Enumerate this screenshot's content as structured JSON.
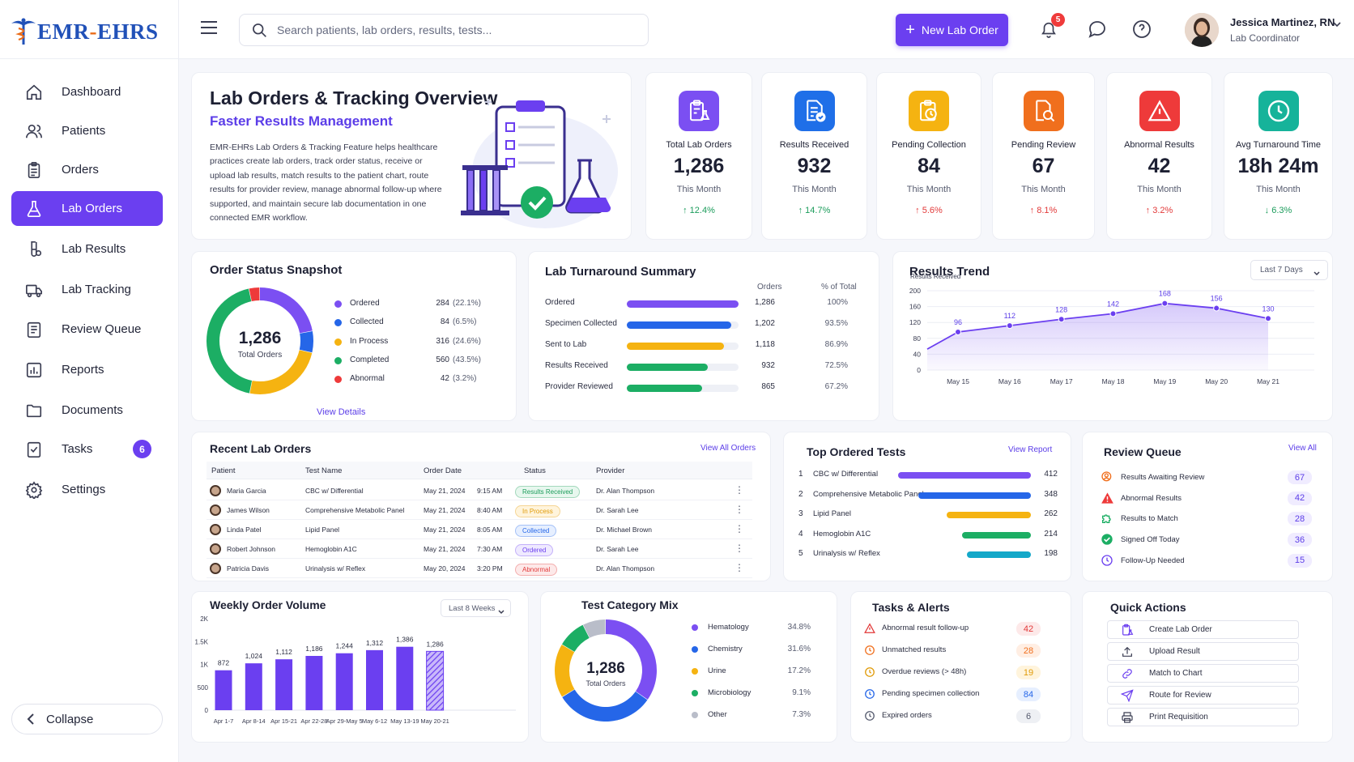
{
  "brand": {
    "logo_text_a": "EMR",
    "logo_text_dash": "-",
    "logo_text_b": "EHRS"
  },
  "sidebar": {
    "items": [
      {
        "label": "Dashboard",
        "icon": "home-icon"
      },
      {
        "label": "Patients",
        "icon": "users-icon"
      },
      {
        "label": "Orders",
        "icon": "clipboard-icon"
      },
      {
        "label": "Lab Orders",
        "icon": "flask-icon",
        "active": true
      },
      {
        "label": "Lab Results",
        "icon": "test-tube-icon"
      },
      {
        "label": "Lab Tracking",
        "icon": "truck-icon"
      },
      {
        "label": "Review Queue",
        "icon": "list-icon"
      },
      {
        "label": "Reports",
        "icon": "bar-chart-icon"
      },
      {
        "label": "Documents",
        "icon": "folder-icon"
      },
      {
        "label": "Tasks",
        "icon": "checklist-icon",
        "badge": "6"
      },
      {
        "label": "Settings",
        "icon": "gear-icon"
      }
    ],
    "collapse_label": "Collapse"
  },
  "header": {
    "search_placeholder": "Search patients, lab orders, results, tests...",
    "new_order_label": "New Lab Order",
    "notification_count": "5",
    "user_name": "Jessica Martinez, RN",
    "user_role": "Lab Coordinator"
  },
  "overview": {
    "title": "Lab Orders & Tracking Overview",
    "subtitle": "Faster Results Management",
    "description_lines": [
      "EMR-EHRs Lab Orders & Tracking Feature helps healthcare",
      "practices create lab orders, track order status, receive or",
      "upload lab results, match results to the patient chart, route",
      "results for provider review, manage abnormal follow-up where",
      "supported, and maintain secure lab documentation in one",
      "connected EMR workflow."
    ]
  },
  "kpis": [
    {
      "label": "Total Lab Orders",
      "value": "1,286",
      "sub": "This Month",
      "change": "↑ 12.4%",
      "tone": "up-green",
      "color": "#7b4ff2",
      "icon": "clipboard-flask-icon"
    },
    {
      "label": "Results Received",
      "value": "932",
      "sub": "This Month",
      "change": "↑ 14.7%",
      "tone": "up-green",
      "color": "#1f6fe8",
      "icon": "document-check-icon"
    },
    {
      "label": "Pending Collection",
      "value": "84",
      "sub": "This Month",
      "change": "↑ 5.6%",
      "tone": "up-red",
      "color": "#f5b311",
      "icon": "clock-clipboard-icon"
    },
    {
      "label": "Pending Review",
      "value": "67",
      "sub": "This Month",
      "change": "↑ 8.1%",
      "tone": "up-red",
      "color": "#f06f1d",
      "icon": "search-document-icon"
    },
    {
      "label": "Abnormal Results",
      "value": "42",
      "sub": "This Month",
      "change": "↑ 3.2%",
      "tone": "up-red",
      "color": "#ee3a3a",
      "icon": "warning-icon"
    },
    {
      "label": "Avg Turnaround Time",
      "value": "18h 24m",
      "sub": "This Month",
      "change": "↓ 6.3%",
      "tone": "down-green",
      "color": "#16b39a",
      "icon": "clock-icon"
    }
  ],
  "order_status": {
    "title": "Order Status Snapshot",
    "center_value": "1,286",
    "center_label": "Total Orders",
    "link": "View Details",
    "items": [
      {
        "label": "Ordered",
        "count": "284",
        "pct": "(22.1%)",
        "value": 284,
        "color": "#7b4ff2"
      },
      {
        "label": "Collected",
        "count": "84",
        "pct": "(6.5%)",
        "value": 84,
        "color": "#2566e8"
      },
      {
        "label": "In Process",
        "count": "316",
        "pct": "(24.6%)",
        "value": 316,
        "color": "#f5b311"
      },
      {
        "label": "Completed",
        "count": "560",
        "pct": "(43.5%)",
        "value": 560,
        "color": "#1cae64"
      },
      {
        "label": "Abnormal",
        "count": "42",
        "pct": "(3.2%)",
        "value": 42,
        "color": "#ee3a3a"
      }
    ]
  },
  "turnaround": {
    "title": "Lab Turnaround Summary",
    "col_orders": "Orders",
    "col_pct": "% of Total",
    "rows": [
      {
        "label": "Ordered",
        "orders": "1,286",
        "pct": "100%",
        "fraction": 1.0,
        "color": "#7b4ff2"
      },
      {
        "label": "Specimen Collected",
        "orders": "1,202",
        "pct": "93.5%",
        "fraction": 0.935,
        "color": "#2566e8"
      },
      {
        "label": "Sent to Lab",
        "orders": "1,118",
        "pct": "86.9%",
        "fraction": 0.869,
        "color": "#f5b311"
      },
      {
        "label": "Results Received",
        "orders": "932",
        "pct": "72.5%",
        "fraction": 0.725,
        "color": "#1cae64"
      },
      {
        "label": "Provider Reviewed",
        "orders": "865",
        "pct": "67.2%",
        "fraction": 0.672,
        "color": "#1cae64"
      }
    ]
  },
  "results_trend": {
    "title": "Results Trend",
    "range_label": "Last 7 Days",
    "chart_data": {
      "type": "area",
      "ylabel": "Results Received",
      "x": [
        "May 15",
        "May 16",
        "May 17",
        "May 18",
        "May 19",
        "May 20",
        "May 21"
      ],
      "values": [
        96,
        112,
        128,
        142,
        168,
        156,
        130
      ],
      "ylim": [
        0,
        200
      ],
      "yticks": [
        0,
        40,
        80,
        120,
        160,
        200
      ],
      "color": "#6b3ff0"
    }
  },
  "recent_orders": {
    "title": "Recent Lab Orders",
    "link": "View All Orders",
    "columns": [
      "Patient",
      "Test Name",
      "Order Date",
      "Status",
      "Provider"
    ],
    "rows": [
      {
        "patient": "Maria Garcia",
        "test": "CBC w/ Differential",
        "date": "May 21, 2024",
        "time": "9:15 AM",
        "status": "Results Received",
        "provider": "Dr. Alan Thompson",
        "status_color": "#1b9c5b",
        "status_bg": "#e7f7ee"
      },
      {
        "patient": "James Wilson",
        "test": "Comprehensive Metabolic Panel",
        "date": "May 21, 2024",
        "time": "8:40 AM",
        "status": "In Process",
        "provider": "Dr. Sarah Lee",
        "status_color": "#e09a06",
        "status_bg": "#fff4dc"
      },
      {
        "patient": "Linda Patel",
        "test": "Lipid Panel",
        "date": "May 21, 2024",
        "time": "8:05 AM",
        "status": "Collected",
        "provider": "Dr. Michael Brown",
        "status_color": "#2566e8",
        "status_bg": "#e6efff"
      },
      {
        "patient": "Robert Johnson",
        "test": "Hemoglobin A1C",
        "date": "May 21, 2024",
        "time": "7:30 AM",
        "status": "Ordered",
        "provider": "Dr. Sarah Lee",
        "status_color": "#6b3ff0",
        "status_bg": "#efeaff"
      },
      {
        "patient": "Patricia Davis",
        "test": "Urinalysis w/ Reflex",
        "date": "May 20, 2024",
        "time": "3:20 PM",
        "status": "Abnormal",
        "provider": "Dr. Alan Thompson",
        "status_color": "#e23939",
        "status_bg": "#fde9e9"
      }
    ]
  },
  "top_tests": {
    "title": "Top Ordered Tests",
    "link": "View Report",
    "rows": [
      {
        "rank": "1",
        "label": "CBC w/ Differential",
        "count": "412",
        "value": 412,
        "color": "#7b4ff2"
      },
      {
        "rank": "2",
        "label": "Comprehensive Metabolic Panel",
        "count": "348",
        "value": 348,
        "color": "#2566e8"
      },
      {
        "rank": "3",
        "label": "Lipid Panel",
        "count": "262",
        "value": 262,
        "color": "#f5b311"
      },
      {
        "rank": "4",
        "label": "Hemoglobin A1C",
        "count": "214",
        "value": 214,
        "color": "#1cae64"
      },
      {
        "rank": "5",
        "label": "Urinalysis w/ Reflex",
        "count": "198",
        "value": 198,
        "color": "#14a8c9"
      }
    ]
  },
  "review_queue": {
    "title": "Review Queue",
    "link": "View All",
    "rows": [
      {
        "label": "Results Awaiting Review",
        "count": "67",
        "icon": "person-search-icon",
        "color": "#f06f1d"
      },
      {
        "label": "Abnormal Results",
        "count": "42",
        "icon": "warning-icon",
        "color": "#ee3a3a"
      },
      {
        "label": "Results to Match",
        "count": "28",
        "icon": "puzzle-icon",
        "color": "#1cae64"
      },
      {
        "label": "Signed Off Today",
        "count": "36",
        "icon": "check-circle-icon",
        "color": "#1cae64"
      },
      {
        "label": "Follow-Up Needed",
        "count": "15",
        "icon": "clock-icon",
        "color": "#6b3ff0"
      }
    ]
  },
  "weekly_volume": {
    "title": "Weekly Order Volume",
    "range_label": "Last 8 Weeks",
    "chart_data": {
      "type": "bar",
      "categories": [
        "Apr 1-7",
        "Apr 8-14",
        "Apr 15-21",
        "Apr 22-28",
        "Apr 29-May 5",
        "May 6-12",
        "May 13-19",
        "May 20-21"
      ],
      "values": [
        872,
        1024,
        1112,
        1186,
        1244,
        1312,
        1386,
        1286
      ],
      "value_labels": [
        "872",
        "1,024",
        "1,112",
        "1,186",
        "1,244",
        "1,312",
        "1,386",
        "1,286"
      ],
      "ylim": [
        0,
        2000
      ],
      "ytick_labels": [
        "0",
        "500",
        "1K",
        "1.5K",
        "2K"
      ],
      "color": "#6b3ff0"
    }
  },
  "category_mix": {
    "title": "Test Category Mix",
    "center_value": "1,286",
    "center_label": "Total Orders",
    "chart_data": {
      "type": "pie",
      "labels": [
        "Hematology",
        "Chemistry",
        "Urine",
        "Microbiology",
        "Other"
      ],
      "values": [
        34.8,
        31.6,
        17.2,
        9.1,
        7.3
      ],
      "pct_labels": [
        "34.8%",
        "31.6%",
        "17.2%",
        "9.1%",
        "7.3%"
      ],
      "colors": [
        "#7b4ff2",
        "#2566e8",
        "#f5b311",
        "#1cae64",
        "#b9bdc9"
      ]
    }
  },
  "tasks_alerts": {
    "title": "Tasks & Alerts",
    "rows": [
      {
        "label": "Abnormal result follow-up",
        "count": "42",
        "icon": "alert-icon",
        "color": "#e23939",
        "bg": "#fde9e9"
      },
      {
        "label": "Unmatched results",
        "count": "28",
        "icon": "clock-icon",
        "color": "#f06f1d",
        "bg": "#ffeee3"
      },
      {
        "label": "Overdue reviews (> 48h)",
        "count": "19",
        "icon": "clock-icon",
        "color": "#e09a06",
        "bg": "#fff4dc"
      },
      {
        "label": "Pending specimen collection",
        "count": "84",
        "icon": "clock-icon",
        "color": "#2566e8",
        "bg": "#e6efff"
      },
      {
        "label": "Expired orders",
        "count": "6",
        "icon": "clock-icon",
        "color": "#555a6e",
        "bg": "#eef0f4"
      }
    ]
  },
  "quick_actions": {
    "title": "Quick Actions",
    "items": [
      {
        "label": "Create Lab Order",
        "icon": "clipboard-flask-icon"
      },
      {
        "label": "Upload Result",
        "icon": "upload-icon"
      },
      {
        "label": "Match to Chart",
        "icon": "link-icon"
      },
      {
        "label": "Route for Review",
        "icon": "send-icon"
      },
      {
        "label": "Print Requisition",
        "icon": "printer-icon"
      }
    ]
  }
}
